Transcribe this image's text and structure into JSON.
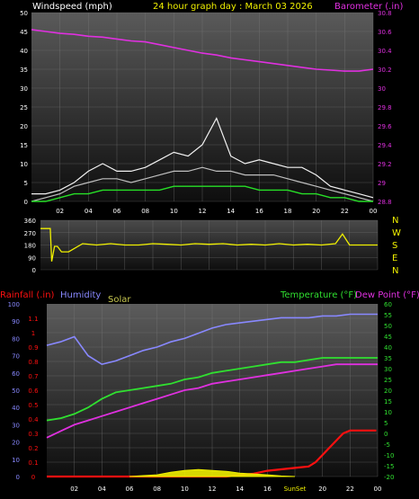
{
  "colors": {
    "wind": "#ffffff",
    "gust": "#f2f2f2",
    "wind_avg": "#27e027",
    "barometer": "#e030e0",
    "direction": "#f0f000",
    "rain": "#ff1010",
    "humidity": "#8888ff",
    "solar": "#f0f000",
    "temperature": "#30e030",
    "dewpoint": "#e030e0",
    "title": "#f0f000",
    "tick_text": "#ffffff"
  },
  "chart_data": [
    {
      "type": "line",
      "panel": "wind-barometer",
      "title": "24 hour graph day : March 03 2026",
      "ylabel_left": "Windspeed (mph)",
      "ylabel_right": "Barometer (.in)",
      "ylim_left": [
        0,
        50
      ],
      "ylim_right": [
        28.8,
        30.8
      ],
      "yticks_left": [
        "0",
        "5",
        "10",
        "15",
        "20",
        "25",
        "30",
        "35",
        "40",
        "45",
        "50"
      ],
      "yticks_right": [
        "28.8",
        "29",
        "29.2",
        "29.4",
        "29.6",
        "29.8",
        "30",
        "30.2",
        "30.4",
        "30.6",
        "30.8"
      ],
      "xlim": [
        0,
        24
      ],
      "xticks": [
        "02",
        "04",
        "06",
        "08",
        "10",
        "12",
        "14",
        "16",
        "18",
        "20",
        "22",
        "00"
      ],
      "grid": true,
      "series": [
        {
          "name": "Barometer",
          "axis": "right",
          "x": [
            0,
            1,
            2,
            3,
            4,
            5,
            6,
            7,
            8,
            9,
            10,
            11,
            12,
            13,
            14,
            15,
            16,
            17,
            18,
            19,
            20,
            21,
            22,
            23,
            24
          ],
          "y": [
            30.62,
            30.6,
            30.58,
            30.57,
            30.55,
            30.54,
            30.52,
            30.5,
            30.49,
            30.46,
            30.43,
            30.4,
            30.37,
            30.35,
            30.32,
            30.3,
            30.28,
            30.26,
            30.24,
            30.22,
            30.2,
            30.19,
            30.18,
            30.18,
            30.2
          ]
        },
        {
          "name": "Wind gust",
          "axis": "left",
          "x": [
            0,
            1,
            2,
            3,
            4,
            5,
            6,
            7,
            8,
            9,
            10,
            11,
            12,
            13,
            14,
            15,
            16,
            17,
            18,
            19,
            20,
            21,
            22,
            23,
            24
          ],
          "y": [
            2,
            2,
            3,
            5,
            8,
            10,
            8,
            8,
            9,
            11,
            13,
            12,
            15,
            22,
            12,
            10,
            11,
            10,
            9,
            9,
            7,
            4,
            3,
            2,
            1
          ]
        },
        {
          "name": "Wind speed",
          "axis": "left",
          "x": [
            0,
            1,
            2,
            3,
            4,
            5,
            6,
            7,
            8,
            9,
            10,
            11,
            12,
            13,
            14,
            15,
            16,
            17,
            18,
            19,
            20,
            21,
            22,
            23,
            24
          ],
          "y": [
            0,
            1,
            2,
            4,
            5,
            6,
            6,
            5,
            6,
            7,
            8,
            8,
            9,
            8,
            8,
            7,
            7,
            7,
            6,
            5,
            4,
            3,
            2,
            1,
            0
          ]
        },
        {
          "name": "Wind average",
          "axis": "left",
          "x": [
            0,
            1,
            2,
            3,
            4,
            5,
            6,
            7,
            8,
            9,
            10,
            11,
            12,
            13,
            14,
            15,
            16,
            17,
            18,
            19,
            20,
            21,
            22,
            23,
            24
          ],
          "y": [
            0,
            0,
            1,
            2,
            2,
            3,
            3,
            3,
            3,
            3,
            4,
            4,
            4,
            4,
            4,
            4,
            3,
            3,
            3,
            2,
            2,
            1,
            1,
            0,
            0
          ]
        }
      ]
    },
    {
      "type": "line",
      "panel": "direction",
      "ylim": [
        0,
        360
      ],
      "yticks": [
        "0",
        "90",
        "180",
        "270",
        "360"
      ],
      "compass_labels": [
        "N",
        "W",
        "S",
        "E",
        "N"
      ],
      "xlim": [
        0,
        24
      ],
      "grid": true,
      "series": [
        {
          "name": "Wind direction",
          "x": [
            0,
            0.7,
            0.8,
            1,
            1.2,
            1.5,
            2,
            3,
            4,
            5,
            6,
            7,
            8,
            9,
            10,
            11,
            12,
            13,
            14,
            15,
            16,
            17,
            18,
            19,
            20,
            21,
            21.5,
            22,
            23,
            24
          ],
          "y": [
            300,
            300,
            60,
            170,
            170,
            130,
            130,
            190,
            180,
            190,
            180,
            180,
            190,
            185,
            180,
            190,
            185,
            190,
            180,
            185,
            180,
            190,
            180,
            185,
            180,
            190,
            260,
            180,
            180,
            180
          ]
        }
      ]
    },
    {
      "type": "line",
      "panel": "rain-humidity-temperature",
      "ylabel_left": "Rainfall (.in)",
      "ylabel_humidity": "Humidity",
      "ylabel_solar": "Solar",
      "ylabel_right": "Temperature (°F)",
      "ylabel_right2": "Dew Point (°F)",
      "ylim_rain": [
        0,
        1.2
      ],
      "ylim_humidity": [
        0,
        100
      ],
      "ylim_temp": [
        -20,
        60
      ],
      "yticks_humidity": [
        "0",
        "10",
        "20",
        "30",
        "40",
        "50",
        "60",
        "70",
        "80",
        "90",
        "100"
      ],
      "yticks_rain": [
        "0",
        "0.1",
        "0.2",
        "0.3",
        "0.4",
        "0.5",
        "0.6",
        "0.7",
        "0.8",
        "0.9",
        "1",
        "1.1"
      ],
      "yticks_temp": [
        "-20",
        "-15",
        "-10",
        "-5",
        "0",
        "5",
        "10",
        "15",
        "20",
        "25",
        "30",
        "35",
        "40",
        "45",
        "50",
        "55",
        "60"
      ],
      "xlim": [
        0,
        24
      ],
      "xticks": [
        "02",
        "04",
        "06",
        "08",
        "10",
        "12",
        "14",
        "16",
        "SunSet",
        "20",
        "22",
        "00"
      ],
      "grid": true,
      "series": [
        {
          "name": "Humidity",
          "axis": "humidity",
          "x": [
            0,
            1,
            2,
            3,
            4,
            5,
            6,
            7,
            8,
            9,
            10,
            11,
            12,
            13,
            14,
            15,
            16,
            17,
            18,
            19,
            20,
            21,
            22,
            23,
            24
          ],
          "y": [
            76,
            78,
            81,
            70,
            65,
            67,
            70,
            73,
            75,
            78,
            80,
            83,
            86,
            88,
            89,
            90,
            91,
            92,
            92,
            92,
            93,
            93,
            94,
            94,
            94
          ]
        },
        {
          "name": "Temperature",
          "axis": "temp",
          "x": [
            0,
            1,
            2,
            3,
            4,
            5,
            6,
            7,
            8,
            9,
            10,
            11,
            12,
            13,
            14,
            15,
            16,
            17,
            18,
            19,
            20,
            21,
            22,
            23,
            24
          ],
          "y": [
            6,
            7,
            9,
            12,
            16,
            19,
            20,
            21,
            22,
            23,
            25,
            26,
            28,
            29,
            30,
            31,
            32,
            33,
            33,
            34,
            35,
            35,
            35,
            35,
            35
          ]
        },
        {
          "name": "Dew Point",
          "axis": "temp",
          "x": [
            0,
            1,
            2,
            3,
            4,
            5,
            6,
            7,
            8,
            9,
            10,
            11,
            12,
            13,
            14,
            15,
            16,
            17,
            18,
            19,
            20,
            21,
            22,
            23,
            24
          ],
          "y": [
            -2,
            1,
            4,
            6,
            8,
            10,
            12,
            14,
            16,
            18,
            20,
            21,
            23,
            24,
            25,
            26,
            27,
            28,
            29,
            30,
            31,
            32,
            32,
            32,
            32
          ]
        },
        {
          "name": "Rainfall",
          "axis": "rain",
          "x": [
            0,
            2,
            4,
            6,
            8,
            10,
            12,
            13,
            14,
            15,
            16,
            17,
            18,
            19,
            19.5,
            20,
            20.5,
            21,
            21.5,
            22,
            23,
            23.9
          ],
          "y": [
            0,
            0,
            0,
            0,
            0,
            0,
            0,
            0,
            0.01,
            0.02,
            0.04,
            0.05,
            0.06,
            0.07,
            0.1,
            0.15,
            0.2,
            0.25,
            0.3,
            0.32,
            0.32,
            0.32
          ]
        },
        {
          "name": "Solar",
          "axis": "humidity",
          "x": [
            6,
            7,
            8,
            9,
            10,
            11,
            12,
            13,
            14,
            15,
            16,
            17,
            18
          ],
          "y": [
            0,
            0.5,
            1,
            2.5,
            3.5,
            4,
            3.5,
            3,
            2,
            1.5,
            1,
            0.3,
            0
          ]
        }
      ]
    }
  ]
}
